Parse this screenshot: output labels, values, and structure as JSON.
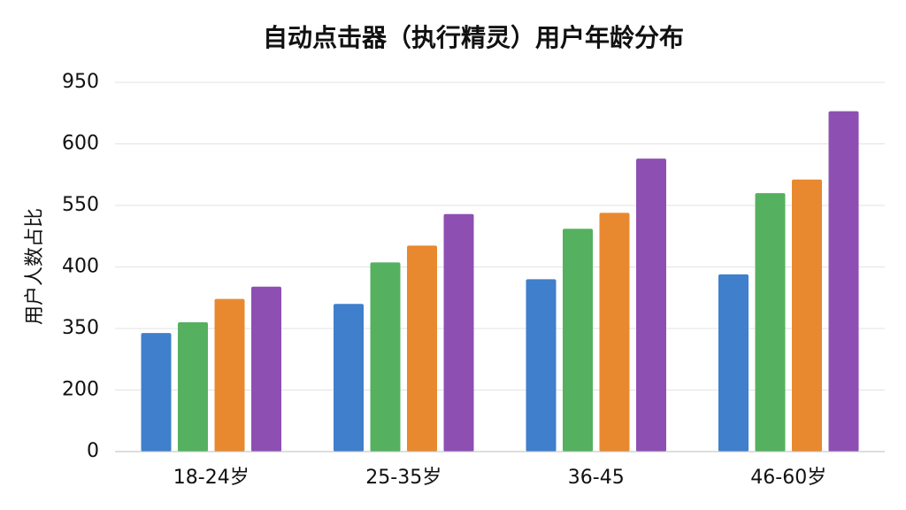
{
  "chart_data": {
    "type": "bar",
    "title": "自动点击器（执行精灵）用户年龄分布",
    "y_label": "用户人数占比",
    "categories": [
      "18-24岁",
      "25-35岁",
      "36-45",
      "46-60岁"
    ],
    "series": [
      {
        "color": "#3f7fcb",
        "values": [
          339,
          370,
          390,
          394
        ]
      },
      {
        "color": "#55b15f",
        "values": [
          355,
          411,
          493,
          560
        ]
      },
      {
        "color": "#e8892f",
        "values": [
          374,
          452,
          532,
          571
        ]
      },
      {
        "color": "#8e4fb3",
        "values": [
          384,
          529,
          588,
          786
        ]
      }
    ],
    "ylim": [
      0,
      950
    ],
    "yticks": [
      0,
      200,
      350,
      400,
      550,
      600,
      950
    ],
    "grid": true
  }
}
